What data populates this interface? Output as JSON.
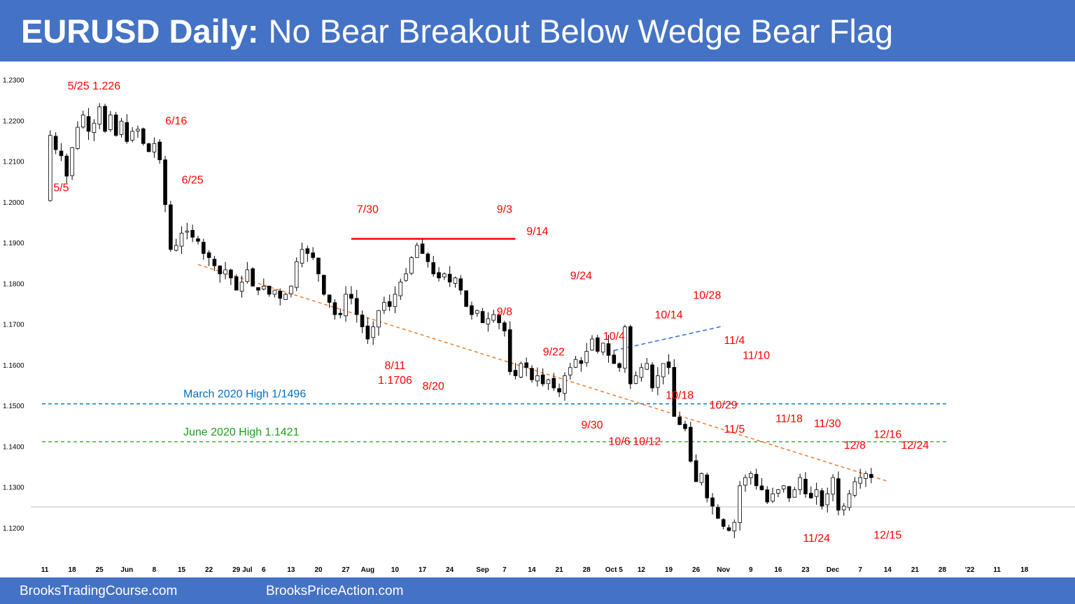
{
  "header": {
    "title_bold": "EURUSD Daily:",
    "title_rest": "No Bear Breakout Below Wedge Bear Flag",
    "background": "#4472c4"
  },
  "footer": {
    "left_text": "BrooksTradingCourse.com",
    "right_text": "BrooksPriceAction.com"
  },
  "chart_data": {
    "type": "candlestick",
    "title": "EURUSD Daily:",
    "subtitle": "No Bear Breakout Below Wedge Bear Flag",
    "ylim": [
      1.117,
      1.232
    ],
    "y_ticks": [
      1.23,
      1.22,
      1.21,
      1.2,
      1.19,
      1.18,
      1.17,
      1.16,
      1.15,
      1.14,
      1.13,
      1.12
    ],
    "y_tick_format": "4 decimals",
    "x_range_sessions": [
      0,
      165
    ],
    "x_ticks": [
      {
        "label": "11",
        "session": 0
      },
      {
        "label": "18",
        "session": 5
      },
      {
        "label": "25",
        "session": 10
      },
      {
        "label": "Jun",
        "session": 15
      },
      {
        "label": "8",
        "session": 20
      },
      {
        "label": "15",
        "session": 25
      },
      {
        "label": "22",
        "session": 30
      },
      {
        "label": "29",
        "session": 35
      },
      {
        "label": "Jul",
        "session": 37
      },
      {
        "label": "6",
        "session": 40
      },
      {
        "label": "13",
        "session": 45
      },
      {
        "label": "20",
        "session": 50
      },
      {
        "label": "27",
        "session": 55
      },
      {
        "label": "Aug",
        "session": 59
      },
      {
        "label": "10",
        "session": 64
      },
      {
        "label": "17",
        "session": 69
      },
      {
        "label": "24",
        "session": 74
      },
      {
        "label": "Sep",
        "session": 80
      },
      {
        "label": "7",
        "session": 84
      },
      {
        "label": "14",
        "session": 89
      },
      {
        "label": "21",
        "session": 94
      },
      {
        "label": "28",
        "session": 99
      },
      {
        "label": "Oct 5",
        "session": 104
      },
      {
        "label": "12",
        "session": 109
      },
      {
        "label": "19",
        "session": 114
      },
      {
        "label": "26",
        "session": 119
      },
      {
        "label": "Nov",
        "session": 124
      },
      {
        "label": "9",
        "session": 129
      },
      {
        "label": "16",
        "session": 134
      },
      {
        "label": "23",
        "session": 139
      },
      {
        "label": "Dec",
        "session": 144
      },
      {
        "label": "7",
        "session": 149
      },
      {
        "label": "14",
        "session": 154
      },
      {
        "label": "21",
        "session": 159
      },
      {
        "label": "28",
        "session": 164
      },
      {
        "label": "'22",
        "session": 169
      },
      {
        "label": "11",
        "session": 174
      },
      {
        "label": "18",
        "session": 179
      }
    ],
    "path": [
      [
        0,
        1.2005
      ],
      [
        1,
        1.2165
      ],
      [
        2,
        1.213
      ],
      [
        3,
        1.2115
      ],
      [
        4,
        1.2065
      ],
      [
        5,
        1.2135
      ],
      [
        6,
        1.2185
      ],
      [
        7,
        1.2215
      ],
      [
        8,
        1.2175
      ],
      [
        9,
        1.2195
      ],
      [
        10,
        1.2235
      ],
      [
        11,
        1.2175
      ],
      [
        12,
        1.2215
      ],
      [
        13,
        1.2165
      ],
      [
        14,
        1.22
      ],
      [
        15,
        1.215
      ],
      [
        16,
        1.2175
      ],
      [
        17,
        1.218
      ],
      [
        18,
        1.2145
      ],
      [
        19,
        1.2125
      ],
      [
        20,
        1.2145
      ],
      [
        21,
        1.2105
      ],
      [
        22,
        1.1995
      ],
      [
        23,
        1.1885
      ],
      [
        24,
        1.1895
      ],
      [
        25,
        1.1925
      ],
      [
        26,
        1.193
      ],
      [
        27,
        1.1915
      ],
      [
        28,
        1.1905
      ],
      [
        29,
        1.1875
      ],
      [
        30,
        1.1865
      ],
      [
        31,
        1.1845
      ],
      [
        32,
        1.1825
      ],
      [
        33,
        1.1835
      ],
      [
        34,
        1.1815
      ],
      [
        35,
        1.1785
      ],
      [
        36,
        1.1805
      ],
      [
        37,
        1.1835
      ],
      [
        38,
        1.1795
      ],
      [
        39,
        1.1785
      ],
      [
        40,
        1.1795
      ],
      [
        41,
        1.1775
      ],
      [
        42,
        1.1785
      ],
      [
        43,
        1.1765
      ],
      [
        44,
        1.1775
      ],
      [
        45,
        1.1795
      ],
      [
        46,
        1.1855
      ],
      [
        47,
        1.1885
      ],
      [
        48,
        1.1875
      ],
      [
        49,
        1.1865
      ],
      [
        50,
        1.1825
      ],
      [
        51,
        1.1775
      ],
      [
        52,
        1.1755
      ],
      [
        53,
        1.1725
      ],
      [
        54,
        1.1725
      ],
      [
        55,
        1.1775
      ],
      [
        56,
        1.1765
      ],
      [
        57,
        1.1725
      ],
      [
        58,
        1.1695
      ],
      [
        59,
        1.1665
      ],
      [
        60,
        1.1695
      ],
      [
        61,
        1.1735
      ],
      [
        62,
        1.1755
      ],
      [
        63,
        1.1745
      ],
      [
        64,
        1.1775
      ],
      [
        65,
        1.1805
      ],
      [
        66,
        1.1825
      ],
      [
        67,
        1.1865
      ],
      [
        68,
        1.1895
      ],
      [
        69,
        1.1875
      ],
      [
        70,
        1.1855
      ],
      [
        71,
        1.1825
      ],
      [
        72,
        1.1815
      ],
      [
        73,
        1.1825
      ],
      [
        74,
        1.1805
      ],
      [
        75,
        1.1815
      ],
      [
        76,
        1.1785
      ],
      [
        77,
        1.1745
      ],
      [
        78,
        1.1725
      ],
      [
        79,
        1.1735
      ],
      [
        80,
        1.1705
      ],
      [
        81,
        1.1715
      ],
      [
        82,
        1.1725
      ],
      [
        83,
        1.1705
      ],
      [
        84,
        1.1685
      ],
      [
        85,
        1.1585
      ],
      [
        86,
        1.1575
      ],
      [
        87,
        1.1605
      ],
      [
        88,
        1.1595
      ],
      [
        89,
        1.1565
      ],
      [
        90,
        1.1575
      ],
      [
        91,
        1.1555
      ],
      [
        92,
        1.1565
      ],
      [
        93,
        1.1545
      ],
      [
        94,
        1.1535
      ],
      [
        95,
        1.1575
      ],
      [
        96,
        1.1595
      ],
      [
        97,
        1.1615
      ],
      [
        98,
        1.1605
      ],
      [
        99,
        1.1635
      ],
      [
        100,
        1.1665
      ],
      [
        101,
        1.1635
      ],
      [
        102,
        1.1655
      ],
      [
        103,
        1.1625
      ],
      [
        104,
        1.1605
      ],
      [
        105,
        1.1595
      ],
      [
        106,
        1.1695
      ],
      [
        107,
        1.1555
      ],
      [
        108,
        1.1575
      ],
      [
        109,
        1.1595
      ],
      [
        110,
        1.1605
      ],
      [
        111,
        1.1545
      ],
      [
        112,
        1.1575
      ],
      [
        113,
        1.1605
      ],
      [
        114,
        1.1595
      ],
      [
        115,
        1.1475
      ],
      [
        116,
        1.1455
      ],
      [
        117,
        1.1445
      ],
      [
        118,
        1.1365
      ],
      [
        119,
        1.1315
      ],
      [
        120,
        1.1335
      ],
      [
        121,
        1.1275
      ],
      [
        122,
        1.1255
      ],
      [
        123,
        1.1225
      ],
      [
        124,
        1.1205
      ],
      [
        125,
        1.1195
      ],
      [
        126,
        1.1215
      ],
      [
        127,
        1.1305
      ],
      [
        128,
        1.1325
      ],
      [
        129,
        1.1335
      ],
      [
        130,
        1.1305
      ],
      [
        131,
        1.1295
      ],
      [
        132,
        1.1265
      ],
      [
        133,
        1.1285
      ],
      [
        134,
        1.1295
      ],
      [
        135,
        1.1305
      ],
      [
        136,
        1.1275
      ],
      [
        137,
        1.1295
      ],
      [
        138,
        1.1325
      ],
      [
        139,
        1.1285
      ],
      [
        140,
        1.1275
      ],
      [
        141,
        1.1295
      ],
      [
        142,
        1.1255
      ],
      [
        143,
        1.1285
      ],
      [
        144,
        1.1325
      ],
      [
        145,
        1.1245
      ],
      [
        146,
        1.1255
      ],
      [
        147,
        1.1285
      ],
      [
        148,
        1.1315
      ],
      [
        149,
        1.1325
      ],
      [
        150,
        1.1335
      ],
      [
        151,
        1.1325
      ]
    ],
    "annotations": [
      {
        "text": "5/25 1.226",
        "session": 9,
        "price": 1.2278
      },
      {
        "text": "5/5",
        "session": 3,
        "price": 1.2028
      },
      {
        "text": "6/16",
        "session": 24,
        "price": 1.2192
      },
      {
        "text": "6/25",
        "session": 27,
        "price": 1.2047
      },
      {
        "text": "7/30",
        "session": 59,
        "price": 1.1975
      },
      {
        "text": "9/3",
        "session": 84,
        "price": 1.1975
      },
      {
        "text": "9/14",
        "session": 90,
        "price": 1.1921
      },
      {
        "text": "9/24",
        "session": 98,
        "price": 1.1812
      },
      {
        "text": "9/8",
        "session": 84,
        "price": 1.1723
      },
      {
        "text": "9/22",
        "session": 93,
        "price": 1.1625
      },
      {
        "text": "10/4",
        "session": 104,
        "price": 1.1663
      },
      {
        "text": "10/14",
        "session": 114,
        "price": 1.1716
      },
      {
        "text": "10/28",
        "session": 121,
        "price": 1.1764
      },
      {
        "text": "11/4",
        "session": 126,
        "price": 1.1653
      },
      {
        "text": "11/10",
        "session": 130,
        "price": 1.1616
      },
      {
        "text": "8/11",
        "session": 64,
        "price": 1.1591
      },
      {
        "text": "1.1706",
        "session": 64,
        "price": 1.1555
      },
      {
        "text": "8/20",
        "session": 71,
        "price": 1.1541
      },
      {
        "text": "10/18",
        "session": 116,
        "price": 1.1518
      },
      {
        "text": "10/29",
        "session": 124,
        "price": 1.1494
      },
      {
        "text": "11/18",
        "session": 136,
        "price": 1.1461
      },
      {
        "text": "11/30",
        "session": 143,
        "price": 1.1449
      },
      {
        "text": "9/30",
        "session": 100,
        "price": 1.1445
      },
      {
        "text": "11/5",
        "session": 126,
        "price": 1.1435
      },
      {
        "text": "10/6",
        "session": 105,
        "price": 1.1405
      },
      {
        "text": "10/12",
        "session": 110,
        "price": 1.1405
      },
      {
        "text": "12/8",
        "session": 148,
        "price": 1.1396
      },
      {
        "text": "12/16",
        "session": 154,
        "price": 1.1422
      },
      {
        "text": "12/24",
        "session": 159,
        "price": 1.1396
      },
      {
        "text": "11/24",
        "session": 141,
        "price": 1.1167
      },
      {
        "text": "12/15",
        "session": 154,
        "price": 1.1175
      }
    ],
    "reference_lines": [
      {
        "label": "March 2020 High 1/1496",
        "price": 1.1506,
        "color": "#0070c0"
      },
      {
        "label": "June 2020 High 1.1421",
        "price": 1.1413,
        "color": "#1e9e1e"
      }
    ],
    "red_resistance_line": {
      "price": 1.1911,
      "from_session": 56,
      "to_session": 86,
      "color": "#ff0000"
    },
    "wedge_line": {
      "from": [
        104,
        1.1637
      ],
      "to": [
        124,
        1.1697
      ],
      "color": "#2f6fd6"
    },
    "trendline": {
      "from": [
        28,
        1.1848
      ],
      "to": [
        154,
        1.1316
      ],
      "color": "#ed7d31"
    },
    "label_color": "#ff0000",
    "grid": false
  }
}
